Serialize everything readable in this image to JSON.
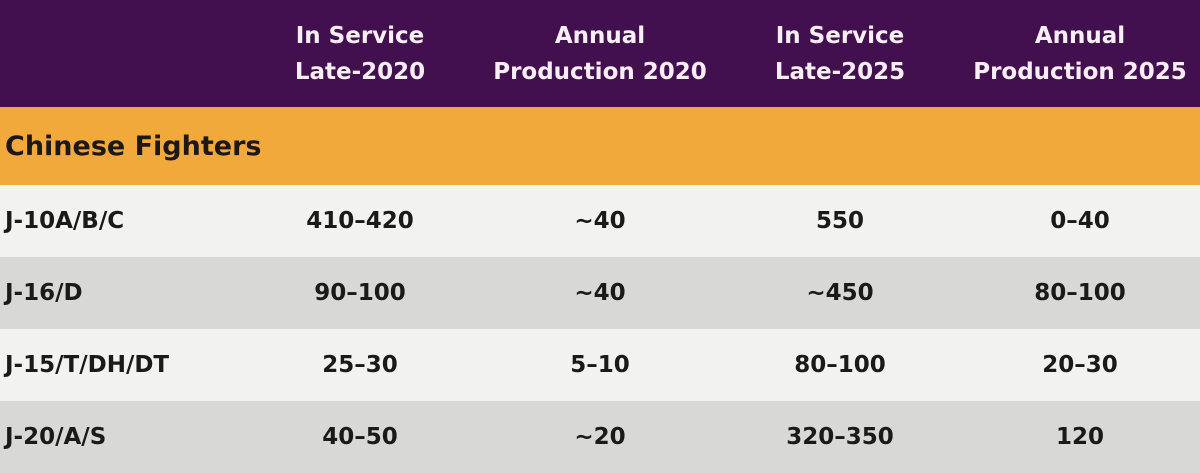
{
  "colors": {
    "header_bg": "#42104E",
    "header_text": "#F7EFF3",
    "section_bg": "#F2A93B",
    "section_text": "#1C1819",
    "row_light_bg": "#F2F2F0",
    "row_dark_bg": "#D8D8D6",
    "cell_text": "#1A1A1A"
  },
  "header": {
    "row_label_col": "",
    "cols": [
      {
        "line1": "In Service",
        "line2": "Late-2020"
      },
      {
        "line1": "Annual",
        "line2": "Production 2020"
      },
      {
        "line1": "In Service",
        "line2": "Late-2025"
      },
      {
        "line1": "Annual",
        "line2": "Production 2025"
      }
    ]
  },
  "section_label": "Chinese Fighters",
  "chart_data": {
    "type": "table",
    "columns": [
      "",
      "In Service Late-2020",
      "Annual Production 2020",
      "In Service Late-2025",
      "Annual Production 2025"
    ],
    "section": "Chinese Fighters",
    "rows": [
      [
        "J-10A/B/C",
        "410–420",
        "~40",
        "550",
        "0–40"
      ],
      [
        "J-16/D",
        "90–100",
        "~40",
        "~450",
        "80–100"
      ],
      [
        "J-15/T/DH/DT",
        "25–30",
        "5–10",
        "80–100",
        "20–30"
      ],
      [
        "J-20/A/S",
        "40–50",
        "~20",
        "320–350",
        "120"
      ]
    ]
  }
}
